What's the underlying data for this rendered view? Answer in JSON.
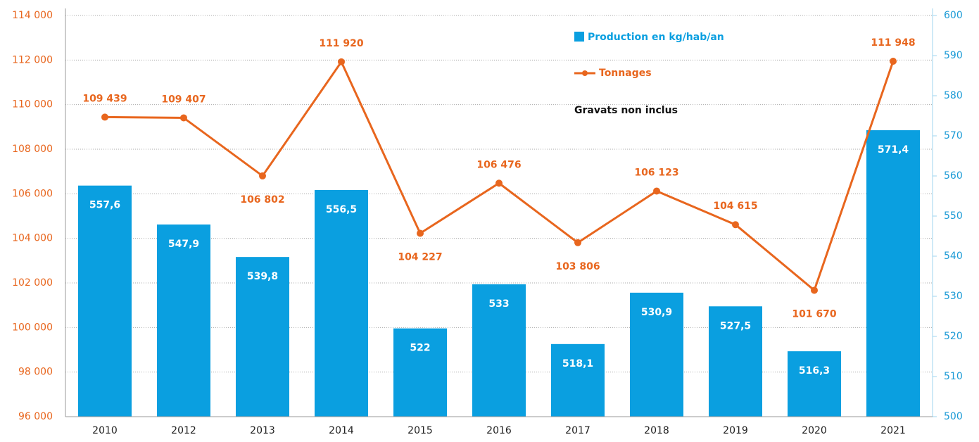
{
  "chart_data": {
    "type": "bar_line",
    "categories": [
      "2010",
      "2012",
      "2013",
      "2014",
      "2015",
      "2016",
      "2017",
      "2018",
      "2019",
      "2020",
      "2021"
    ],
    "series": [
      {
        "name": "Production en kg/hab/an",
        "type": "bar",
        "axis": "y2",
        "color": "#0a9fe0",
        "values": [
          557.6,
          547.9,
          539.8,
          556.5,
          522,
          533,
          518.1,
          530.9,
          527.5,
          516.3,
          571.4
        ],
        "value_labels": [
          "557,6",
          "547,9",
          "539,8",
          "556,5",
          "522",
          "533",
          "518,1",
          "530,9",
          "527,5",
          "516,3",
          "571,4"
        ]
      },
      {
        "name": "Tonnages",
        "type": "line",
        "axis": "y",
        "color": "#e8661e",
        "values": [
          109439,
          109407,
          106802,
          111920,
          104227,
          106476,
          103806,
          106123,
          104615,
          101670,
          111948
        ],
        "value_labels": [
          "109 439",
          "109 407",
          "106 802",
          "111 920",
          "104 227",
          "106 476",
          "103 806",
          "106 123",
          "104 615",
          "101 670",
          "111 948"
        ]
      }
    ],
    "annotation": "Gravats non inclus",
    "ylim": [
      96000,
      114000
    ],
    "yticks": [
      {
        "value": 96000,
        "label": "96 000"
      },
      {
        "value": 98000,
        "label": "98 000"
      },
      {
        "value": 100000,
        "label": "100 000"
      },
      {
        "value": 102000,
        "label": "102 000"
      },
      {
        "value": 104000,
        "label": "104 000"
      },
      {
        "value": 106000,
        "label": "106 000"
      },
      {
        "value": 108000,
        "label": "108 000"
      },
      {
        "value": 110000,
        "label": "110 000"
      },
      {
        "value": 112000,
        "label": "112 000"
      },
      {
        "value": 114000,
        "label": "114 000"
      }
    ],
    "y2lim": [
      500,
      600
    ],
    "y2ticks": [
      500,
      510,
      520,
      530,
      540,
      550,
      560,
      570,
      580,
      590,
      600
    ],
    "grid": true
  }
}
